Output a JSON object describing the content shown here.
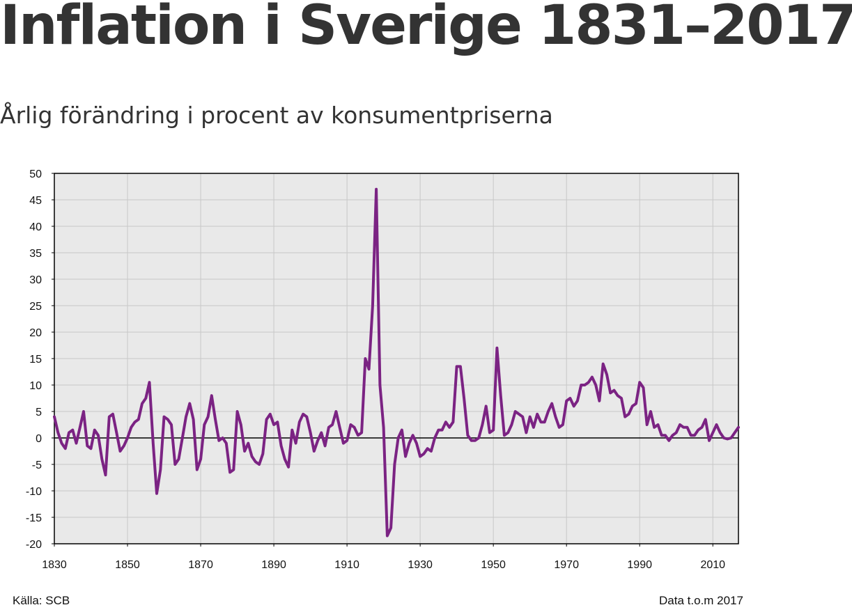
{
  "title": "Inflation i Sverige 1831–2017",
  "subtitle": "Årlig förändring i procent av konsumentpriserna",
  "source_label": "Källa: SCB",
  "data_note": "Data t.o.m  2017",
  "colors": {
    "line": "#7b2383",
    "plot_bg": "#e9e9e9",
    "grid": "#c8c8c8",
    "text": "#333333"
  },
  "chart_data": {
    "type": "line",
    "title": "Inflation i Sverige 1831–2017",
    "ylabel": "",
    "xlabel": "",
    "xlim": [
      1830,
      2017
    ],
    "ylim": [
      -20,
      50
    ],
    "x_ticks": [
      1830,
      1850,
      1870,
      1890,
      1910,
      1930,
      1950,
      1970,
      1990,
      2010
    ],
    "y_ticks": [
      50,
      45,
      40,
      35,
      30,
      25,
      20,
      15,
      10,
      5,
      0,
      -5,
      -10,
      -15,
      -20
    ],
    "series": [
      {
        "name": "Inflation",
        "points": [
          [
            1830,
            4
          ],
          [
            1831,
            1
          ],
          [
            1832,
            -1
          ],
          [
            1833,
            -2
          ],
          [
            1834,
            1
          ],
          [
            1835,
            1.5
          ],
          [
            1836,
            -1
          ],
          [
            1837,
            2
          ],
          [
            1838,
            5
          ],
          [
            1839,
            -1.5
          ],
          [
            1840,
            -2
          ],
          [
            1841,
            1.5
          ],
          [
            1842,
            0.5
          ],
          [
            1843,
            -4
          ],
          [
            1844,
            -7
          ],
          [
            1845,
            4
          ],
          [
            1846,
            4.5
          ],
          [
            1847,
            1
          ],
          [
            1848,
            -2.5
          ],
          [
            1849,
            -1.5
          ],
          [
            1850,
            0
          ],
          [
            1851,
            2
          ],
          [
            1852,
            3
          ],
          [
            1853,
            3.5
          ],
          [
            1854,
            6.5
          ],
          [
            1855,
            7.5
          ],
          [
            1856,
            10.5
          ],
          [
            1857,
            -1
          ],
          [
            1858,
            -10.5
          ],
          [
            1859,
            -6
          ],
          [
            1860,
            4
          ],
          [
            1861,
            3.5
          ],
          [
            1862,
            2.5
          ],
          [
            1863,
            -5
          ],
          [
            1864,
            -4
          ],
          [
            1865,
            0
          ],
          [
            1866,
            4
          ],
          [
            1867,
            6.5
          ],
          [
            1868,
            3.5
          ],
          [
            1869,
            -6
          ],
          [
            1870,
            -4
          ],
          [
            1871,
            2.5
          ],
          [
            1872,
            4
          ],
          [
            1873,
            8
          ],
          [
            1874,
            3.5
          ],
          [
            1875,
            -0.5
          ],
          [
            1876,
            0
          ],
          [
            1877,
            -1
          ],
          [
            1878,
            -6.5
          ],
          [
            1879,
            -6
          ],
          [
            1880,
            5
          ],
          [
            1881,
            2.5
          ],
          [
            1882,
            -2.5
          ],
          [
            1883,
            -1
          ],
          [
            1884,
            -3.5
          ],
          [
            1885,
            -4.5
          ],
          [
            1886,
            -5
          ],
          [
            1887,
            -3
          ],
          [
            1888,
            3.5
          ],
          [
            1889,
            4.5
          ],
          [
            1890,
            2.5
          ],
          [
            1891,
            3
          ],
          [
            1892,
            -1.5
          ],
          [
            1893,
            -4
          ],
          [
            1894,
            -5.5
          ],
          [
            1895,
            1.5
          ],
          [
            1896,
            -1
          ],
          [
            1897,
            3
          ],
          [
            1898,
            4.5
          ],
          [
            1899,
            4
          ],
          [
            1900,
            1
          ],
          [
            1901,
            -2.5
          ],
          [
            1902,
            -0.5
          ],
          [
            1903,
            1
          ],
          [
            1904,
            -1.5
          ],
          [
            1905,
            2
          ],
          [
            1906,
            2.5
          ],
          [
            1907,
            5
          ],
          [
            1908,
            2
          ],
          [
            1909,
            -1
          ],
          [
            1910,
            -0.5
          ],
          [
            1911,
            2.5
          ],
          [
            1912,
            2
          ],
          [
            1913,
            0.5
          ],
          [
            1914,
            1
          ],
          [
            1915,
            15
          ],
          [
            1916,
            13
          ],
          [
            1917,
            25
          ],
          [
            1918,
            47
          ],
          [
            1919,
            10
          ],
          [
            1920,
            2
          ],
          [
            1921,
            -18.5
          ],
          [
            1922,
            -17
          ],
          [
            1923,
            -5
          ],
          [
            1924,
            0
          ],
          [
            1925,
            1.5
          ],
          [
            1926,
            -3.5
          ],
          [
            1927,
            -1
          ],
          [
            1928,
            0.5
          ],
          [
            1929,
            -1
          ],
          [
            1930,
            -3.5
          ],
          [
            1931,
            -3
          ],
          [
            1932,
            -2
          ],
          [
            1933,
            -2.5
          ],
          [
            1934,
            0
          ],
          [
            1935,
            1.5
          ],
          [
            1936,
            1.5
          ],
          [
            1937,
            3
          ],
          [
            1938,
            2
          ],
          [
            1939,
            3
          ],
          [
            1940,
            13.5
          ],
          [
            1941,
            13.5
          ],
          [
            1942,
            7.5
          ],
          [
            1943,
            0.5
          ],
          [
            1944,
            -0.5
          ],
          [
            1945,
            -0.5
          ],
          [
            1946,
            0
          ],
          [
            1947,
            2.5
          ],
          [
            1948,
            6
          ],
          [
            1949,
            1
          ],
          [
            1950,
            1.5
          ],
          [
            1951,
            17
          ],
          [
            1952,
            8
          ],
          [
            1953,
            0.5
          ],
          [
            1954,
            1
          ],
          [
            1955,
            2.5
          ],
          [
            1956,
            5
          ],
          [
            1957,
            4.5
          ],
          [
            1958,
            4
          ],
          [
            1959,
            1
          ],
          [
            1960,
            4
          ],
          [
            1961,
            2
          ],
          [
            1962,
            4.5
          ],
          [
            1963,
            3
          ],
          [
            1964,
            3
          ],
          [
            1965,
            5
          ],
          [
            1966,
            6.5
          ],
          [
            1967,
            4
          ],
          [
            1968,
            2
          ],
          [
            1969,
            2.5
          ],
          [
            1970,
            7
          ],
          [
            1971,
            7.5
          ],
          [
            1972,
            6
          ],
          [
            1973,
            7
          ],
          [
            1974,
            10
          ],
          [
            1975,
            10
          ],
          [
            1976,
            10.5
          ],
          [
            1977,
            11.5
          ],
          [
            1978,
            10
          ],
          [
            1979,
            7
          ],
          [
            1980,
            14
          ],
          [
            1981,
            12
          ],
          [
            1982,
            8.5
          ],
          [
            1983,
            9
          ],
          [
            1984,
            8
          ],
          [
            1985,
            7.5
          ],
          [
            1986,
            4
          ],
          [
            1987,
            4.5
          ],
          [
            1988,
            6
          ],
          [
            1989,
            6.5
          ],
          [
            1990,
            10.5
          ],
          [
            1991,
            9.5
          ],
          [
            1992,
            2.5
          ],
          [
            1993,
            5
          ],
          [
            1994,
            2
          ],
          [
            1995,
            2.5
          ],
          [
            1996,
            0.5
          ],
          [
            1997,
            0.5
          ],
          [
            1998,
            -0.5
          ],
          [
            1999,
            0.5
          ],
          [
            2000,
            1
          ],
          [
            2001,
            2.5
          ],
          [
            2002,
            2
          ],
          [
            2003,
            2
          ],
          [
            2004,
            0.5
          ],
          [
            2005,
            0.5
          ],
          [
            2006,
            1.5
          ],
          [
            2007,
            2
          ],
          [
            2008,
            3.5
          ],
          [
            2009,
            -0.5
          ],
          [
            2010,
            1
          ],
          [
            2011,
            2.5
          ],
          [
            2012,
            1
          ],
          [
            2013,
            0
          ],
          [
            2014,
            -0.2
          ],
          [
            2015,
            0
          ],
          [
            2016,
            1
          ],
          [
            2017,
            2
          ]
        ]
      }
    ]
  }
}
